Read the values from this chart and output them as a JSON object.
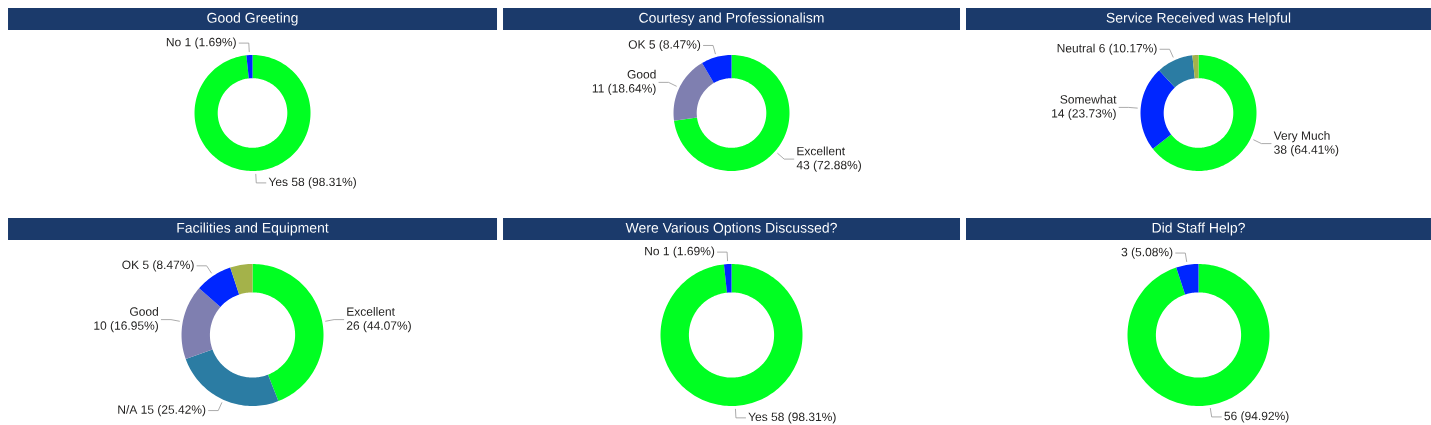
{
  "chart_data": [
    {
      "type": "donut",
      "title": "Good Greeting",
      "categories": [
        "Yes",
        "No"
      ],
      "values": [
        58,
        1
      ],
      "colors": [
        "#00ff22",
        "#0026ff"
      ],
      "value_labels": [
        "58 (98.31%)",
        "1 (1.69%)"
      ]
    },
    {
      "type": "donut",
      "title": "Courtesy and Professionalism",
      "categories": [
        "Excellent",
        "Good",
        "OK"
      ],
      "values": [
        43,
        11,
        5
      ],
      "colors": [
        "#00ff22",
        "#7f7fb0",
        "#0026ff"
      ],
      "value_labels": [
        "43 (72.88%)",
        "11 (18.64%)",
        "5 (8.47%)"
      ]
    },
    {
      "type": "donut",
      "title": "Service Received was Helpful",
      "categories": [
        "Very Much",
        "Somewhat",
        "Neutral",
        null
      ],
      "values": [
        38,
        14,
        6,
        1
      ],
      "colors": [
        "#00ff22",
        "#0026ff",
        "#2b7ca3",
        "#a4b24a"
      ],
      "value_labels": [
        "38 (64.41%)",
        "14 (23.73%)",
        "6 (10.17%)",
        null
      ]
    },
    {
      "type": "donut",
      "title": "Facilities and Equipment",
      "categories": [
        "Excellent",
        "N/A",
        "Good",
        "OK",
        null
      ],
      "values": [
        26,
        15,
        10,
        5,
        3
      ],
      "colors": [
        "#00ff22",
        "#2b7ca3",
        "#7f7fb0",
        "#0026ff",
        "#a4b24a"
      ],
      "value_labels": [
        "26 (44.07%)",
        "15 (25.42%)",
        "10 (16.95%)",
        "5 (8.47%)",
        null
      ]
    },
    {
      "type": "donut",
      "title": "Were Various Options Discussed?",
      "categories": [
        "Yes",
        "No"
      ],
      "values": [
        58,
        1
      ],
      "colors": [
        "#00ff22",
        "#0026ff"
      ],
      "value_labels": [
        "58 (98.31%)",
        "1 (1.69%)"
      ]
    },
    {
      "type": "donut",
      "title": "Did Staff Help?",
      "categories": [
        null,
        null
      ],
      "values": [
        56,
        3
      ],
      "colors": [
        "#00ff22",
        "#0026ff"
      ],
      "value_labels": [
        "56 (94.92%)",
        "3 (5.08%)"
      ]
    }
  ]
}
